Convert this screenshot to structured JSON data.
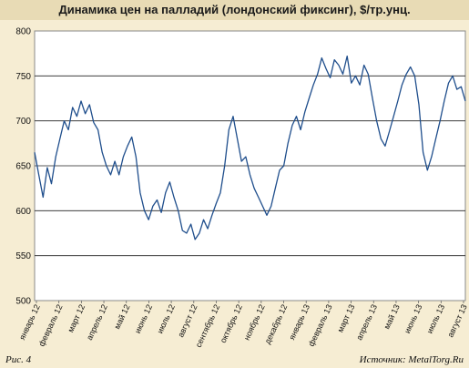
{
  "chart_data": {
    "type": "line",
    "title": "Динамика цен на  палладий (лондонский фиксинг), $/тр.унц.",
    "xlabel": "",
    "ylabel": "",
    "ylim": [
      500,
      800
    ],
    "yticks": [
      500,
      550,
      600,
      650,
      700,
      750,
      800
    ],
    "grid": "horizontal",
    "legend": "none",
    "x_tick_labels": [
      "январь 12",
      "февраль 12",
      "март 12",
      "апрель 12",
      "май 12",
      "июнь 12",
      "июль 12",
      "август 12",
      "сентябрь 12",
      "октябрь 12",
      "ноябрь 12",
      "декабрь 12",
      "январь 13",
      "февраль 13",
      "март 13",
      "апрель 13",
      "май 13",
      "июнь 13",
      "июль 13",
      "август 13"
    ],
    "series": [
      {
        "color": "#1f4e8c",
        "points": [
          [
            0.0,
            665
          ],
          [
            0.2,
            640
          ],
          [
            0.4,
            615
          ],
          [
            0.6,
            648
          ],
          [
            0.8,
            630
          ],
          [
            1.0,
            660
          ],
          [
            1.2,
            680
          ],
          [
            1.4,
            700
          ],
          [
            1.6,
            690
          ],
          [
            1.8,
            715
          ],
          [
            2.0,
            705
          ],
          [
            2.2,
            722
          ],
          [
            2.4,
            708
          ],
          [
            2.6,
            718
          ],
          [
            2.8,
            698
          ],
          [
            3.0,
            690
          ],
          [
            3.2,
            665
          ],
          [
            3.4,
            650
          ],
          [
            3.6,
            640
          ],
          [
            3.8,
            655
          ],
          [
            4.0,
            640
          ],
          [
            4.2,
            660
          ],
          [
            4.4,
            672
          ],
          [
            4.6,
            682
          ],
          [
            4.8,
            660
          ],
          [
            5.0,
            620
          ],
          [
            5.2,
            600
          ],
          [
            5.4,
            590
          ],
          [
            5.6,
            605
          ],
          [
            5.8,
            612
          ],
          [
            6.0,
            598
          ],
          [
            6.2,
            620
          ],
          [
            6.4,
            632
          ],
          [
            6.6,
            615
          ],
          [
            6.8,
            600
          ],
          [
            7.0,
            578
          ],
          [
            7.2,
            575
          ],
          [
            7.4,
            585
          ],
          [
            7.6,
            568
          ],
          [
            7.8,
            575
          ],
          [
            8.0,
            590
          ],
          [
            8.2,
            580
          ],
          [
            8.4,
            595
          ],
          [
            8.6,
            608
          ],
          [
            8.8,
            620
          ],
          [
            9.0,
            650
          ],
          [
            9.2,
            690
          ],
          [
            9.4,
            705
          ],
          [
            9.6,
            680
          ],
          [
            9.8,
            655
          ],
          [
            10.0,
            660
          ],
          [
            10.2,
            640
          ],
          [
            10.4,
            625
          ],
          [
            10.6,
            615
          ],
          [
            10.8,
            605
          ],
          [
            11.0,
            595
          ],
          [
            11.2,
            605
          ],
          [
            11.4,
            625
          ],
          [
            11.6,
            645
          ],
          [
            11.8,
            650
          ],
          [
            12.0,
            675
          ],
          [
            12.2,
            695
          ],
          [
            12.4,
            705
          ],
          [
            12.6,
            690
          ],
          [
            12.8,
            710
          ],
          [
            13.0,
            725
          ],
          [
            13.2,
            740
          ],
          [
            13.4,
            752
          ],
          [
            13.6,
            770
          ],
          [
            13.8,
            758
          ],
          [
            14.0,
            748
          ],
          [
            14.2,
            768
          ],
          [
            14.4,
            762
          ],
          [
            14.6,
            752
          ],
          [
            14.8,
            772
          ],
          [
            15.0,
            742
          ],
          [
            15.2,
            750
          ],
          [
            15.4,
            740
          ],
          [
            15.6,
            762
          ],
          [
            15.8,
            752
          ],
          [
            16.0,
            725
          ],
          [
            16.2,
            700
          ],
          [
            16.4,
            680
          ],
          [
            16.6,
            672
          ],
          [
            16.8,
            688
          ],
          [
            17.0,
            705
          ],
          [
            17.2,
            722
          ],
          [
            17.4,
            740
          ],
          [
            17.6,
            752
          ],
          [
            17.8,
            760
          ],
          [
            18.0,
            750
          ],
          [
            18.2,
            718
          ],
          [
            18.4,
            665
          ],
          [
            18.6,
            645
          ],
          [
            18.8,
            660
          ],
          [
            19.0,
            680
          ],
          [
            19.2,
            700
          ],
          [
            19.4,
            722
          ],
          [
            19.6,
            742
          ],
          [
            19.8,
            750
          ],
          [
            20.0,
            735
          ],
          [
            20.2,
            738
          ],
          [
            20.4,
            722
          ]
        ]
      }
    ]
  },
  "footer": {
    "figure_label": "Рис. 4",
    "source": "Источник: MetalTorg.Ru"
  }
}
